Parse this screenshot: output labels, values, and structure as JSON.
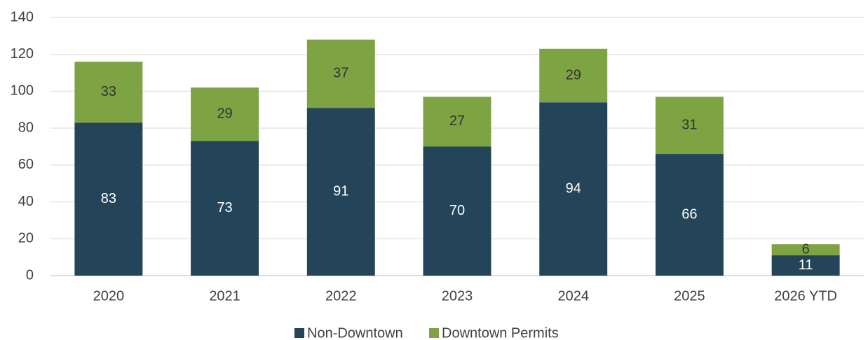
{
  "chart_data": {
    "type": "stacked_bar",
    "categories": [
      "2020",
      "2021",
      "2022",
      "2023",
      "2024",
      "2025",
      "2026 YTD"
    ],
    "series": [
      {
        "name": "Non-Downtown",
        "color": "#234459",
        "values": [
          83,
          73,
          91,
          70,
          94,
          66,
          11
        ]
      },
      {
        "name": "Downtown Permits",
        "color": "#7ea343",
        "values": [
          33,
          29,
          37,
          27,
          29,
          31,
          6
        ]
      }
    ],
    "ylim": [
      0,
      140
    ],
    "yticks": [
      0,
      20,
      40,
      60,
      80,
      100,
      120,
      140
    ],
    "grid": true,
    "legend": "bottom"
  }
}
